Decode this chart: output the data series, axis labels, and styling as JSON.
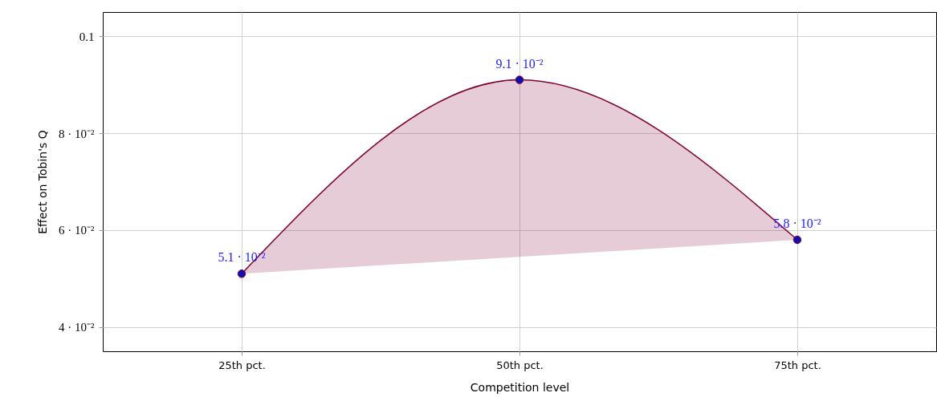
{
  "chart_data": {
    "type": "line",
    "xlabel": "Competition level",
    "ylabel": "Effect on Tobin's Q",
    "categories": [
      "25th pct.",
      "50th pct.",
      "75th pct."
    ],
    "series": [
      {
        "color": "#7f0030",
        "values": [
          0.051,
          0.091,
          0.058
        ],
        "value_labels": [
          "5.1 · 10⁻²",
          "9.1 · 10⁻²",
          "5.8 · 10⁻²"
        ]
      }
    ],
    "ylim": [
      0.035,
      0.105
    ],
    "yticks": [
      {
        "value": 0.04,
        "label": "4 · 10⁻²"
      },
      {
        "value": 0.06,
        "label": "6 · 10⁻²"
      },
      {
        "value": 0.08,
        "label": "8 · 10⁻²"
      },
      0.1
    ],
    "grid": true,
    "marker": "circle",
    "line_style": "solid"
  }
}
